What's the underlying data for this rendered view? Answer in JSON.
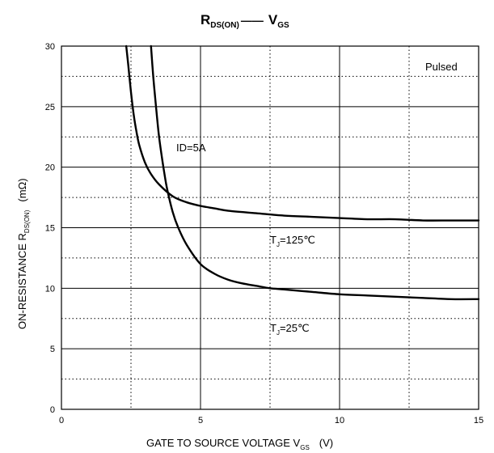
{
  "chart_data": {
    "type": "line",
    "title_main": "R",
    "title_sub": "DS(ON)",
    "title_sep": "——",
    "title_main2": "V",
    "title_sub2": "GS",
    "xlabel_main": "GATE TO SOURCE VOLTAGE   V",
    "xlabel_sub": "GS",
    "xlabel_unit": "(V)",
    "ylabel_main": "ON-RESISTANCE   R",
    "ylabel_sub": "DS(ON)",
    "ylabel_unit": "(mΩ)",
    "xlim": [
      0,
      15
    ],
    "ylim": [
      0,
      30
    ],
    "xticks": [
      0,
      5,
      10,
      15
    ],
    "yticks": [
      0,
      5,
      10,
      15,
      20,
      25,
      30
    ],
    "grid": "solid at major ticks, dotted at midpoints",
    "annotations": {
      "pulsed": "Pulsed",
      "id": "ID=5A",
      "tj125_main": "T",
      "tj125_sub": "J",
      "tj125_val": "=125℃",
      "tj25_main": "T",
      "tj25_sub": "J",
      "tj25_val": "=25℃"
    },
    "series": [
      {
        "label": "TJ=125℃",
        "x": [
          2.33,
          2.4,
          2.5,
          2.6,
          2.7,
          2.8,
          3.0,
          3.2,
          3.5,
          4.0,
          4.5,
          5.0,
          5.5,
          6.0,
          7.0,
          8.0,
          9.0,
          10.0,
          11.0,
          12.0,
          13.0,
          14.0,
          15.0
        ],
        "y": [
          30,
          28.5,
          26.2,
          24.3,
          22.9,
          21.8,
          20.4,
          19.5,
          18.6,
          17.6,
          17.1,
          16.8,
          16.6,
          16.4,
          16.2,
          16.0,
          15.9,
          15.8,
          15.7,
          15.7,
          15.6,
          15.6,
          15.6
        ]
      },
      {
        "label": "TJ=25℃",
        "x": [
          3.22,
          3.3,
          3.4,
          3.5,
          3.6,
          3.7,
          3.8,
          4.0,
          4.2,
          4.5,
          5.0,
          5.5,
          6.0,
          6.5,
          7.0,
          7.5,
          8.0,
          9.0,
          10.0,
          11.0,
          12.0,
          13.0,
          14.0,
          15.0
        ],
        "y": [
          30,
          27.5,
          25.0,
          22.7,
          21.0,
          19.5,
          18.2,
          16.3,
          15.0,
          13.6,
          12.0,
          11.2,
          10.7,
          10.4,
          10.2,
          10.0,
          9.9,
          9.7,
          9.5,
          9.4,
          9.3,
          9.2,
          9.1,
          9.1
        ]
      }
    ],
    "colors": {
      "line": "#000000",
      "grid": "#000000",
      "background": "#ffffff"
    }
  }
}
